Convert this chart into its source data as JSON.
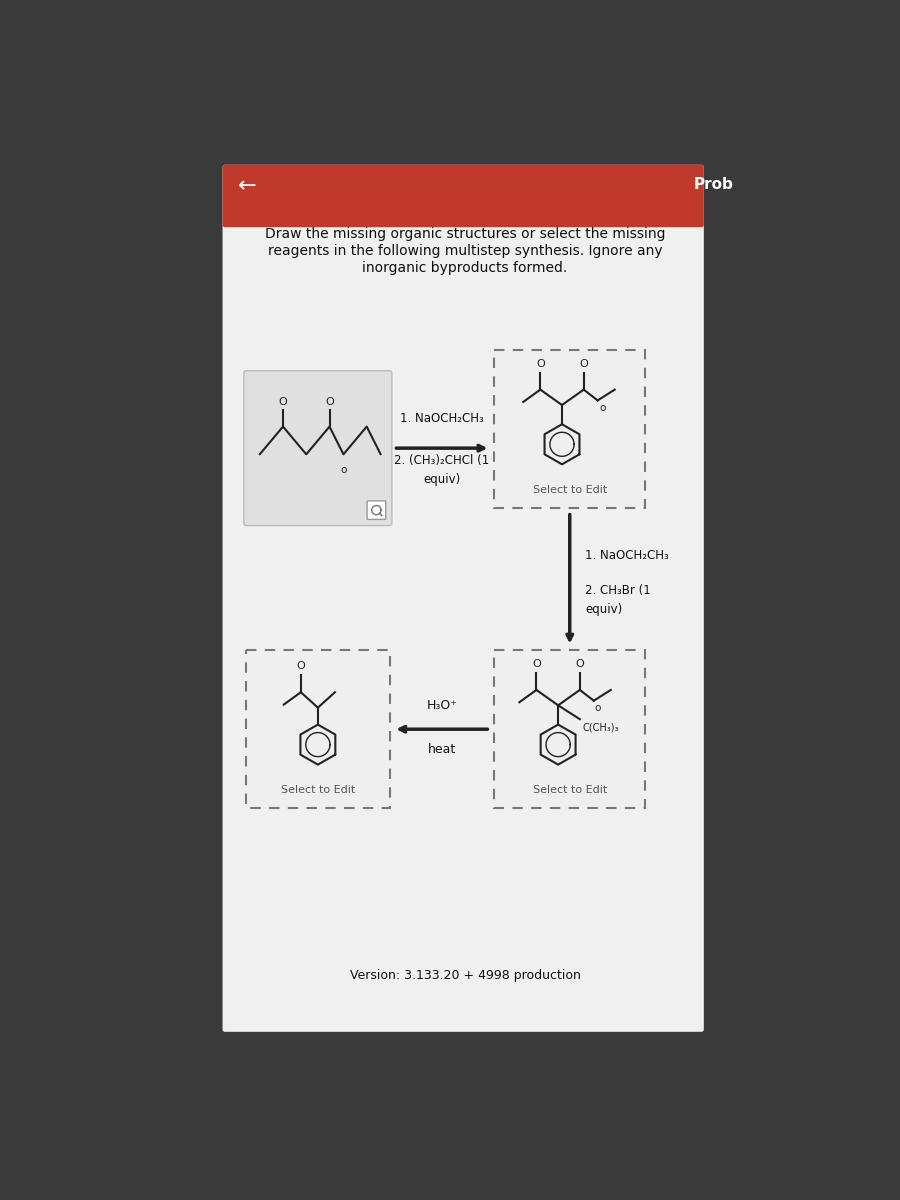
{
  "bg_dark": "#3a3a3a",
  "bg_card": "#f0f0f0",
  "header_red": "#c0392b",
  "prob_text": "Prob",
  "back_arrow": "←",
  "title_line1": "Draw the missing organic structures or select the missing",
  "title_line2": "reagents in the following multistep synthesis. Ignore any",
  "title_line3": "inorganic byproducts formed.",
  "step1_line1": "1. NaOCH₂CH₃",
  "step1_line2": "2. (CH₃)₂CHCl (1",
  "step1_line3": "equiv)",
  "step2_line1": "1. NaOCH₂CH₃",
  "step2_line2": "2. CH₃Br (1",
  "step2_line3": "equiv)",
  "step3_line1": "H₃O⁺",
  "step3_line2": "heat",
  "select_edit": "Select to Edit",
  "version_text": "Version: 3.133.20 + 4998 production",
  "card_bg": "#e6e6e6",
  "dashed_bg": "#efefef",
  "text_dark": "#111111",
  "arrow_color": "#222222",
  "mol_color": "#222222"
}
